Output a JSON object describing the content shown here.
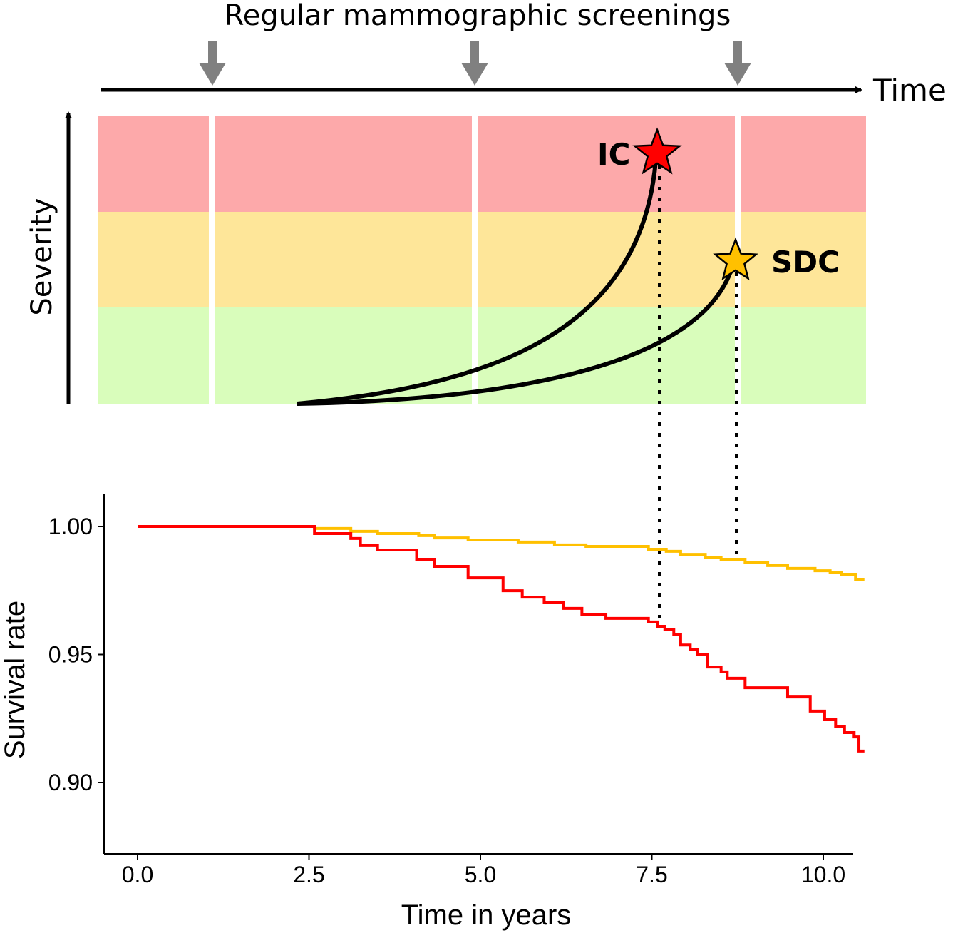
{
  "diagram": {
    "title": "Regular mammographic screenings",
    "time_label": "Time",
    "severity_label": "Severity",
    "ic_label": "IC",
    "sdc_label": "SDC",
    "colors": {
      "high": "#fda9aa",
      "mid": "#fee699",
      "low": "#d9fdbb",
      "arrow": "#808080",
      "ic": "#ff0000",
      "sdc": "#ffc000"
    }
  },
  "chart_data": {
    "type": "line",
    "step": true,
    "xlabel": "Time in years",
    "ylabel": "Survival rate",
    "xlim": [
      -0.5,
      10.6
    ],
    "ylim": [
      0.875,
      1.013
    ],
    "xticks": [
      0,
      2.5,
      5,
      7.5,
      10
    ],
    "xtick_labels": [
      "0.0",
      "2.5",
      "5.0",
      "7.5",
      "10.0"
    ],
    "yticks": [
      0.9,
      0.95,
      1.0
    ],
    "ytick_labels": [
      "0.90",
      "0.95",
      "1.00"
    ],
    "series": [
      {
        "name": "SDC",
        "color": "#ffc000",
        "x": [
          0,
          2.58,
          3.11,
          3.26,
          3.5,
          4.1,
          4.33,
          4.82,
          5.55,
          6.08,
          6.54,
          7.45,
          7.71,
          7.92,
          8.28,
          8.51,
          8.86,
          9.19,
          9.48,
          9.88,
          10.1,
          10.26,
          10.47,
          10.6
        ],
        "y": [
          1.0,
          0.9992,
          0.9981,
          0.9981,
          0.9972,
          0.9964,
          0.9955,
          0.9947,
          0.9939,
          0.9928,
          0.9922,
          0.9911,
          0.9903,
          0.9891,
          0.988,
          0.9872,
          0.9858,
          0.9847,
          0.9836,
          0.9827,
          0.9819,
          0.9811,
          0.9794,
          0.9794
        ]
      },
      {
        "name": "IC",
        "color": "#ff0000",
        "x": [
          0,
          2.58,
          3.11,
          3.25,
          3.5,
          4.07,
          4.33,
          4.82,
          5.33,
          5.61,
          5.93,
          6.21,
          6.48,
          6.83,
          7.45,
          7.58,
          7.69,
          7.82,
          7.92,
          8.06,
          8.16,
          8.31,
          8.51,
          8.6,
          8.86,
          9.48,
          9.81,
          10.02,
          10.18,
          10.31,
          10.45,
          10.52,
          10.6
        ],
        "y": [
          1.0,
          0.9972,
          0.9953,
          0.9925,
          0.9908,
          0.9872,
          0.9844,
          0.9799,
          0.9749,
          0.9724,
          0.9702,
          0.968,
          0.9655,
          0.9641,
          0.9627,
          0.961,
          0.9599,
          0.9579,
          0.9537,
          0.9518,
          0.9499,
          0.9451,
          0.9432,
          0.9407,
          0.937,
          0.9334,
          0.9279,
          0.9245,
          0.922,
          0.9195,
          0.9178,
          0.9123,
          0.9123
        ]
      }
    ]
  }
}
